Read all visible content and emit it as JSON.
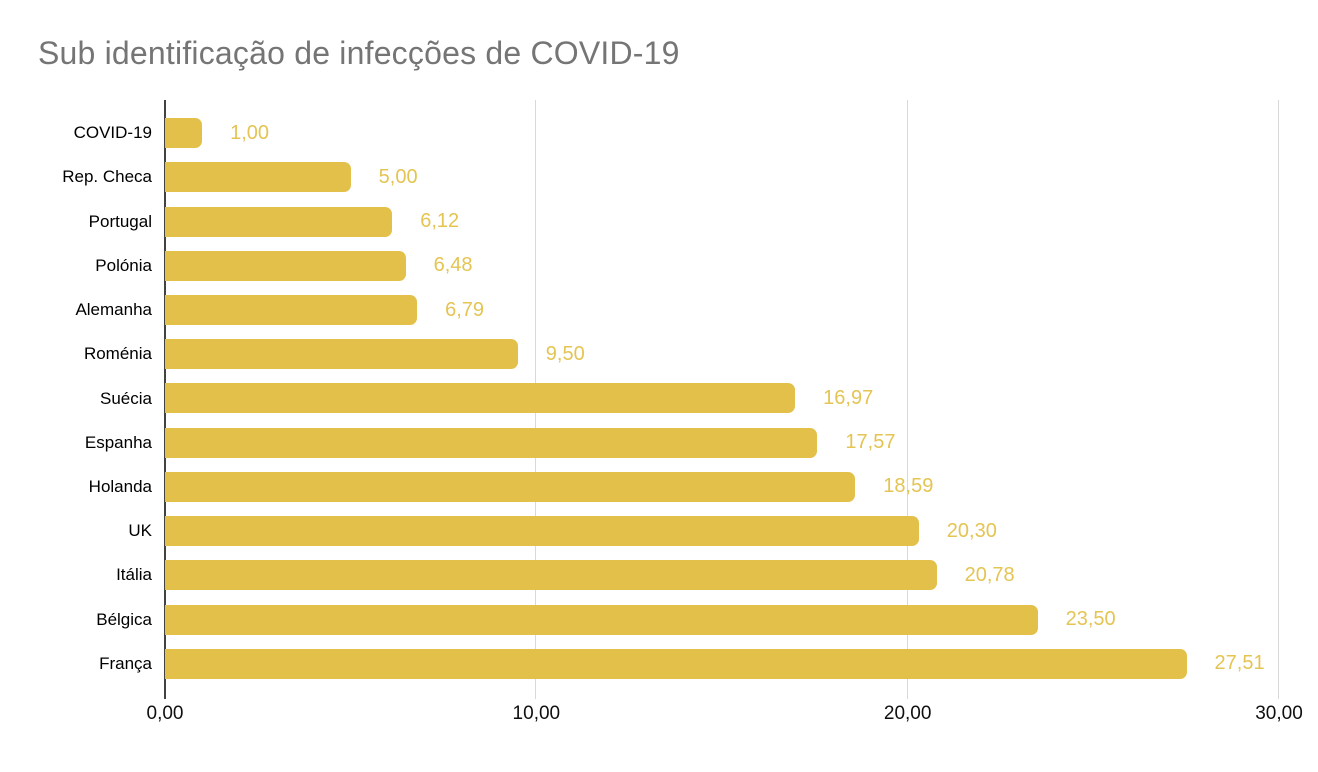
{
  "chart_data": {
    "type": "bar",
    "orientation": "horizontal",
    "title": "Sub identificação de infecções de COVID-19",
    "categories": [
      "COVID-19",
      "Rep. Checa",
      "Portugal",
      "Polónia",
      "Alemanha",
      "Roménia",
      "Suécia",
      "Espanha",
      "Holanda",
      "UK",
      "Itália",
      "Bélgica",
      "França"
    ],
    "values": [
      1.0,
      5.0,
      6.12,
      6.48,
      6.79,
      9.5,
      16.97,
      17.57,
      18.59,
      20.3,
      20.78,
      23.5,
      27.51
    ],
    "value_labels": [
      "1,00",
      "5,00",
      "6,12",
      "6,48",
      "6,79",
      "9,50",
      "16,97",
      "17,57",
      "18,59",
      "20,30",
      "20,78",
      "23,50",
      "27,51"
    ],
    "x_ticks": [
      {
        "value": 0,
        "label": "0,00"
      },
      {
        "value": 10,
        "label": "10,00"
      },
      {
        "value": 20,
        "label": "20,00"
      },
      {
        "value": 30,
        "label": "30,00"
      }
    ],
    "xlim": [
      0,
      30
    ],
    "grid": true,
    "legend": "none",
    "colors": {
      "bar": "#e2c04a",
      "value_label": "#e4c452",
      "title": "#757575",
      "axis_line": "#424242",
      "gridline": "#d9d9d9",
      "category_label": "#000000",
      "tick_label": "#0f0f0f",
      "background": "#ffffff"
    }
  }
}
